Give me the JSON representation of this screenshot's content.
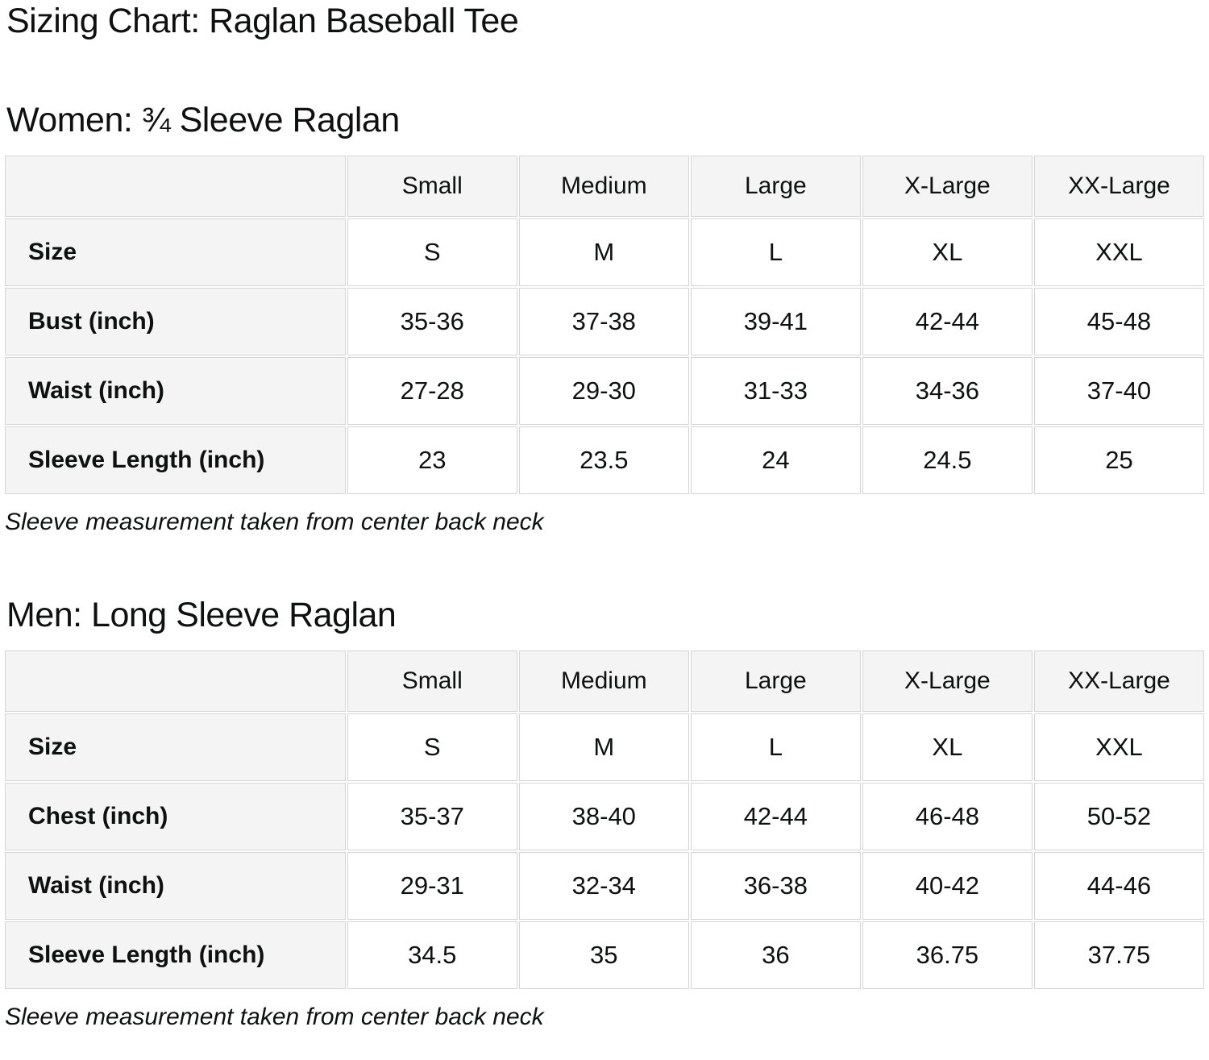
{
  "page_title": "Sizing Chart: Raglan Baseball Tee",
  "colors": {
    "text": "#0f1111",
    "table_border": "#d5d5d5",
    "header_bg": "#f4f4f4",
    "cell_bg": "#ffffff"
  },
  "sections": [
    {
      "heading": "Women: ¾ Sleeve Raglan",
      "note": "Sleeve measurement taken from center back neck",
      "table": {
        "column_headers": [
          "",
          "Small",
          "Medium",
          "Large",
          "X-Large",
          "XX-Large"
        ],
        "rows": [
          {
            "label": "Size",
            "values": [
              "S",
              "M",
              "L",
              "XL",
              "XXL"
            ]
          },
          {
            "label": "Bust (inch)",
            "values": [
              "35-36",
              "37-38",
              "39-41",
              "42-44",
              "45-48"
            ]
          },
          {
            "label": "Waist (inch)",
            "values": [
              "27-28",
              "29-30",
              "31-33",
              "34-36",
              "37-40"
            ]
          },
          {
            "label": "Sleeve Length (inch)",
            "values": [
              "23",
              "23.5",
              "24",
              "24.5",
              "25"
            ]
          }
        ]
      }
    },
    {
      "heading": "Men: Long Sleeve Raglan",
      "note": "Sleeve measurement taken from center back neck",
      "table": {
        "column_headers": [
          "",
          "Small",
          "Medium",
          "Large",
          "X-Large",
          "XX-Large"
        ],
        "rows": [
          {
            "label": "Size",
            "values": [
              "S",
              "M",
              "L",
              "XL",
              "XXL"
            ]
          },
          {
            "label": "Chest (inch)",
            "values": [
              "35-37",
              "38-40",
              "42-44",
              "46-48",
              "50-52"
            ]
          },
          {
            "label": "Waist (inch)",
            "values": [
              "29-31",
              "32-34",
              "36-38",
              "40-42",
              "44-46"
            ]
          },
          {
            "label": "Sleeve Length (inch)",
            "values": [
              "34.5",
              "35",
              "36",
              "36.75",
              "37.75"
            ]
          }
        ]
      }
    }
  ]
}
